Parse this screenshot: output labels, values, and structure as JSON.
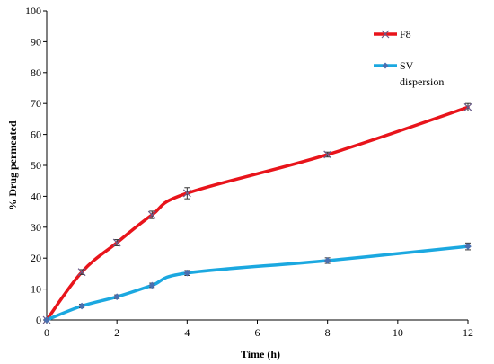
{
  "chart_data": {
    "type": "line",
    "xlabel": "Time (h)",
    "ylabel": "% Drug permeated",
    "xlim": [
      0,
      12
    ],
    "ylim": [
      0,
      100
    ],
    "xticks": [
      0,
      2,
      4,
      6,
      8,
      10,
      12
    ],
    "yticks": [
      0,
      10,
      20,
      30,
      40,
      50,
      60,
      70,
      80,
      90,
      100
    ],
    "grid": false,
    "legend_position": "top-right",
    "series": [
      {
        "name": "F8",
        "color": "#e8141b",
        "marker": "x",
        "x": [
          0,
          1,
          2,
          3,
          4,
          8,
          12
        ],
        "y": [
          0,
          15.5,
          25,
          34,
          41,
          53.5,
          68.8
        ],
        "err": [
          0.3,
          0.8,
          1.0,
          1.2,
          1.8,
          0.8,
          1.2
        ]
      },
      {
        "name": "SV dispersion",
        "color": "#1ba8e0",
        "marker": "diamond",
        "x": [
          0,
          1,
          2,
          3,
          4,
          8,
          12
        ],
        "y": [
          0,
          4.5,
          7.5,
          11.2,
          15.2,
          19.2,
          23.8
        ],
        "err": [
          0.2,
          0.6,
          0.6,
          0.7,
          0.8,
          0.9,
          1.1
        ]
      }
    ]
  }
}
